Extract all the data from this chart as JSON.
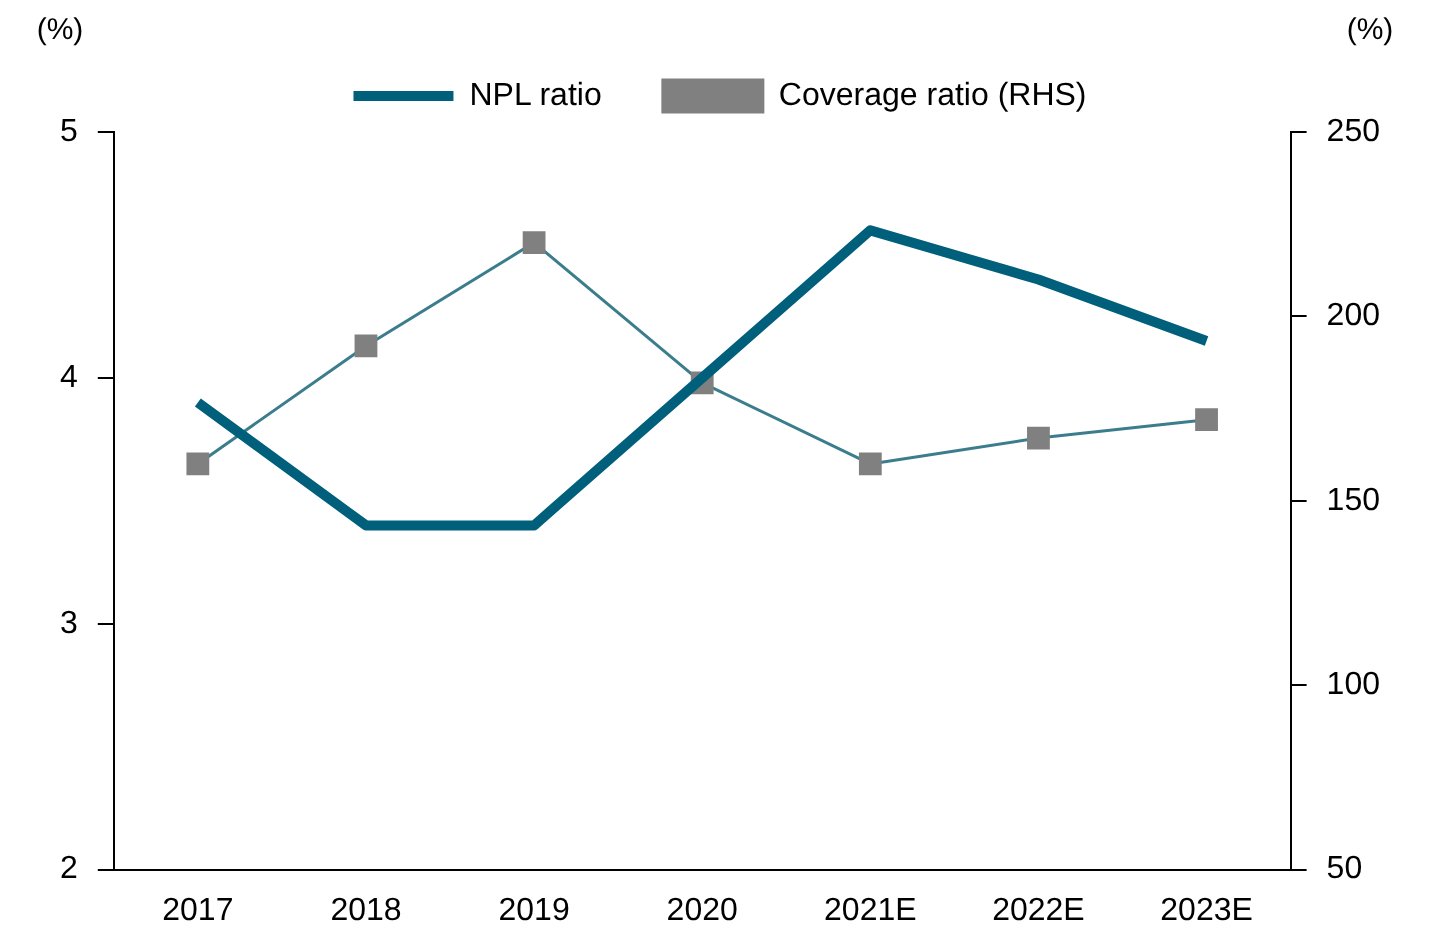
{
  "chart_data": {
    "type": "line",
    "ylabel": "(%)",
    "y2label": "(%)",
    "categories": [
      "2017",
      "2018",
      "2019",
      "2020",
      "2021E",
      "2022E",
      "2023E"
    ],
    "series": [
      {
        "name": "NPL ratio",
        "color": "#005f7a",
        "values": [
          3.9,
          3.4,
          3.4,
          4.0,
          4.6,
          4.4,
          4.15
        ],
        "marker": "none"
      },
      {
        "name": "Coverage ratio (RHS)",
        "color": "#3b7d8c",
        "axis": "y2",
        "values": [
          160,
          192,
          220,
          182,
          160,
          167,
          172
        ],
        "marker": "square"
      }
    ],
    "ylim": [
      2,
      5
    ],
    "yticks": [
      2,
      3,
      4,
      5
    ],
    "y2lim": [
      50,
      250
    ],
    "y2ticks": [
      50,
      100,
      150,
      200,
      250
    ],
    "grid": false,
    "legend": "top",
    "line_style": "solid"
  }
}
